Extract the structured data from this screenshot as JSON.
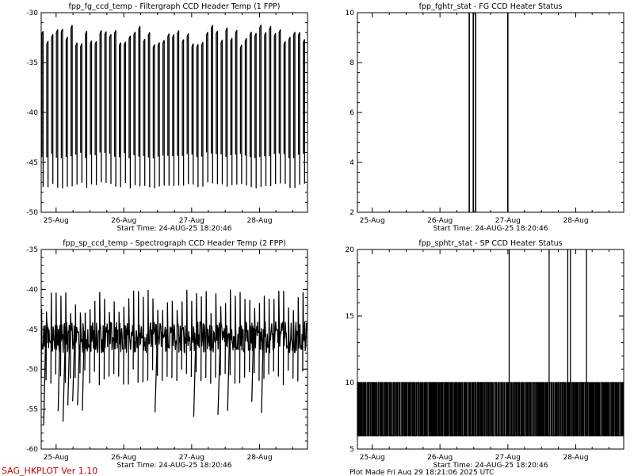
{
  "chart_data": [
    {
      "type": "line",
      "title": "fpp_fg_ccd_temp - Filtergraph CCD Header Temp (1 FPP)",
      "ylim": [
        -50,
        -30
      ],
      "yticks": [
        -50,
        -45,
        -40,
        -35,
        -30
      ],
      "xticks": [
        "25-Aug",
        "26-Aug",
        "27-Aug",
        "28-Aug"
      ],
      "start_time": "Start Time: 24-AUG-25  18:20:46",
      "signal": {
        "kind": "oscillation",
        "low": -47,
        "high": -31.5,
        "cycles": 55,
        "noise": 0.8
      }
    },
    {
      "type": "line",
      "title": "fpp_fghtr_stat - FG CCD Heater Status",
      "ylim": [
        2,
        10
      ],
      "yticks": [
        2,
        4,
        6,
        8,
        10
      ],
      "xticks": [
        "25-Aug",
        "26-Aug",
        "27-Aug",
        "28-Aug"
      ],
      "start_time": "Start Time: 24-AUG-25  18:20:46",
      "signal": {
        "kind": "spikes",
        "base": 2,
        "peak": 10,
        "at": [
          0.42,
          0.435,
          0.444,
          0.565
        ]
      }
    },
    {
      "type": "line",
      "title": "fpp_sp_ccd_temp - Spectrograph CCD Header Temp (2 FPP)",
      "ylim": [
        -60,
        -35
      ],
      "yticks": [
        -60,
        -55,
        -50,
        -45,
        -40,
        -35
      ],
      "xticks": [
        "25-Aug",
        "26-Aug",
        "27-Aug",
        "28-Aug"
      ],
      "start_time": "Start Time: 24-AUG-25  18:20:46",
      "signal": {
        "kind": "dense",
        "low": -52,
        "high": -40,
        "band": [
          -48,
          -44
        ],
        "cycles": 55,
        "outliers": -57
      }
    },
    {
      "type": "line",
      "title": "fpp_sphtr_stat - SP CCD Heater Status",
      "ylim": [
        5,
        20
      ],
      "yticks": [
        5,
        10,
        15,
        20
      ],
      "xticks": [
        "25-Aug",
        "26-Aug",
        "27-Aug",
        "28-Aug"
      ],
      "start_time": "Start Time: 24-AUG-25  18:20:46",
      "signal": {
        "kind": "square",
        "low": 6,
        "high": 10,
        "cycles": 140,
        "spike_to": 20,
        "spikes_at": [
          0.57,
          0.72,
          0.79,
          0.8,
          0.86
        ]
      }
    }
  ],
  "footer_label": "SAG_HKPLOT  Ver 1.10",
  "plot_made": "Plot Made Fri Aug 29 18:21:06 2025 UTC"
}
